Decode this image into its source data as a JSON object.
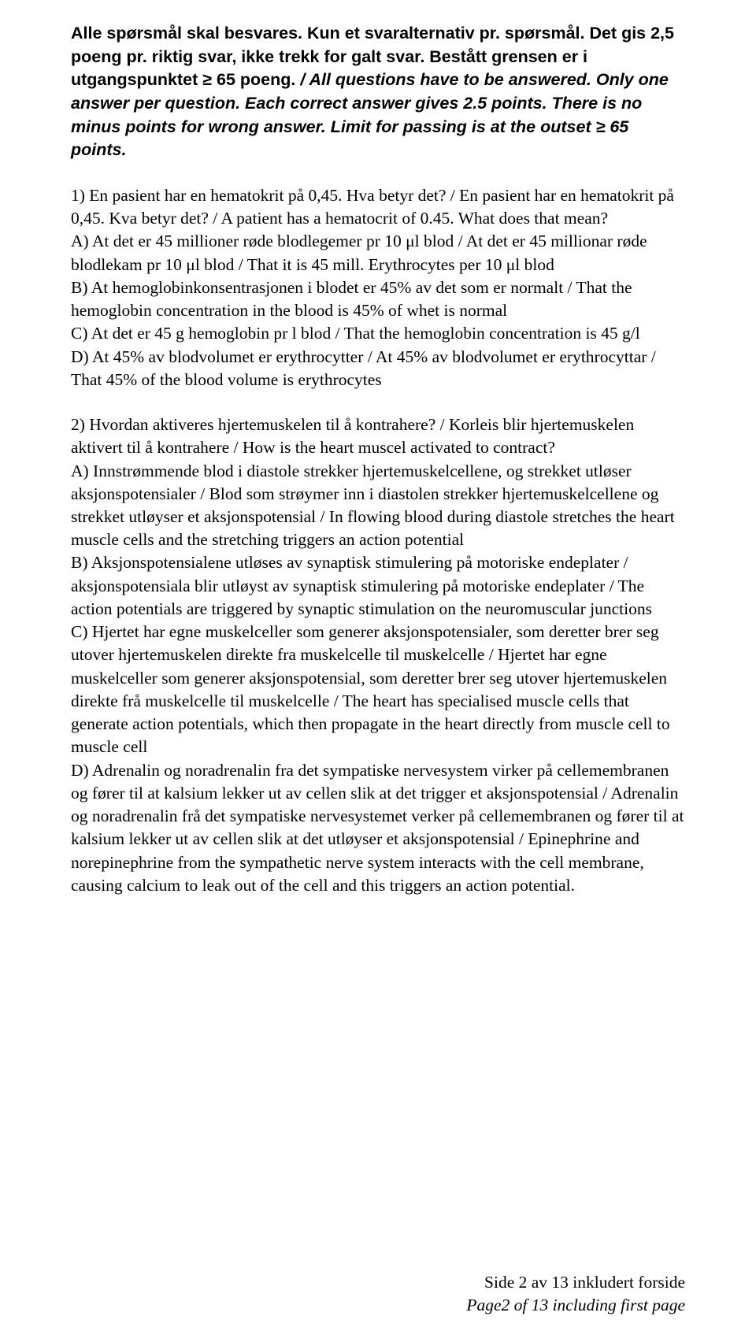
{
  "intro": {
    "part1_bold": "Alle spørsmål skal besvares. Kun et svaralternativ pr. spørsmål. Det gis 2,5 poeng pr. riktig svar, ikke trekk for galt svar. Bestått grensen er i utgangspunktet ≥ 65 poeng. ",
    "part2_italic": "/ All questions have to be answered. Only one answer per question. Each correct answer gives 2.5 points. There is no minus points for wrong answer. Limit for passing is at the outset ≥ 65 points."
  },
  "q1": {
    "stem": "1) En pasient har en hematokrit på 0,45. Hva betyr det? / En pasient har en hematokrit på",
    "stem_line2": "0,45. Kva betyr det? / A patient has a hematocrit of 0.45. What does that mean?",
    "optA": "A) At det er 45 millioner røde blodlegemer pr 10 μl blod / At det er 45 millionar røde blodlekam pr 10 μl blod / That it is 45 mill. Erythrocytes per 10 μl blod",
    "optB": "B) At hemoglobinkonsentrasjonen i blodet er 45% av det som er normalt / That the hemoglobin concentration in the blood is 45% of whet is normal",
    "optC": "C) At det er 45 g hemoglobin pr l blod / That the hemoglobin concentration is 45 g/l",
    "optD": "D) At 45% av blodvolumet er erythrocytter / At 45% av blodvolumet er erythrocyttar / That 45% of the blood volume is erythrocytes"
  },
  "q2": {
    "stem": "2) Hvordan aktiveres hjertemuskelen til å kontrahere? / Korleis blir hjertemuskelen aktivert til å kontrahere / How is the heart muscel activated to contract?",
    "optA": "A) Innstrømmende blod i diastole strekker hjertemuskelcellene, og strekket utløser aksjonspotensialer / Blod som strøymer inn i diastolen strekker hjertemuskelcellene og strekket utløyser et aksjonspotensial / In flowing blood during diastole stretches the heart muscle cells and the stretching triggers an action potential",
    "optB": "B) Aksjonspotensialene utløses av synaptisk stimulering på motoriske endeplater / aksjonspotensiala blir utløyst av synaptisk stimulering på motoriske endeplater / The action potentials are triggered by synaptic stimulation on the neuromuscular junctions",
    "optC": "C) Hjertet har egne muskelceller som generer aksjonspotensialer, som deretter brer seg utover hjertemuskelen direkte fra muskelcelle til muskelcelle / Hjertet har egne muskelceller som generer aksjonspotensial, som deretter brer seg utover hjertemuskelen direkte frå muskelcelle til muskelcelle / The heart has specialised muscle cells that generate action potentials, which then propagate in the heart directly from muscle cell to muscle cell",
    "optD": "D) Adrenalin og noradrenalin fra det sympatiske nervesystem virker på cellemembranen og fører til at kalsium lekker ut av cellen slik at det trigger et aksjonspotensial / Adrenalin og noradrenalin frå det sympatiske nervesystemet verker på cellemembranen og fører til at kalsium lekker ut av cellen slik at det utløyser et aksjonspotensial / Epinephrine and norepinephrine from the sympathetic nerve system interacts with the cell membrane, causing calcium to leak out of the cell and this triggers an action potential."
  },
  "footer": {
    "no": "Side 2 av 13 inkludert forside",
    "en": "Page2 of 13 including first page"
  }
}
